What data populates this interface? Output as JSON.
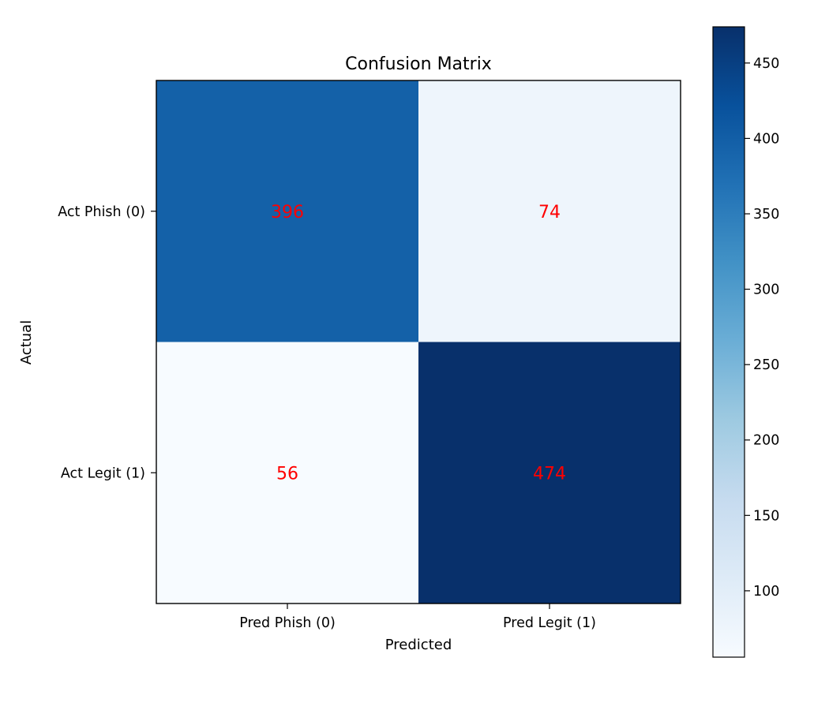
{
  "chart_data": {
    "type": "heatmap",
    "title": "Confusion Matrix",
    "xlabel": "Predicted",
    "ylabel": "Actual",
    "x_categories": [
      "Pred Phish (0)",
      "Pred Legit (1)"
    ],
    "y_categories": [
      "Act Phish (0)",
      "Act Legit (1)"
    ],
    "values": [
      [
        396,
        74
      ],
      [
        56,
        474
      ]
    ],
    "colormap": "Blues",
    "annotation_color": "#ff0000",
    "colorbar": {
      "range": [
        56,
        474
      ],
      "ticks": [
        100,
        150,
        200,
        250,
        300,
        350,
        400,
        450
      ]
    }
  }
}
